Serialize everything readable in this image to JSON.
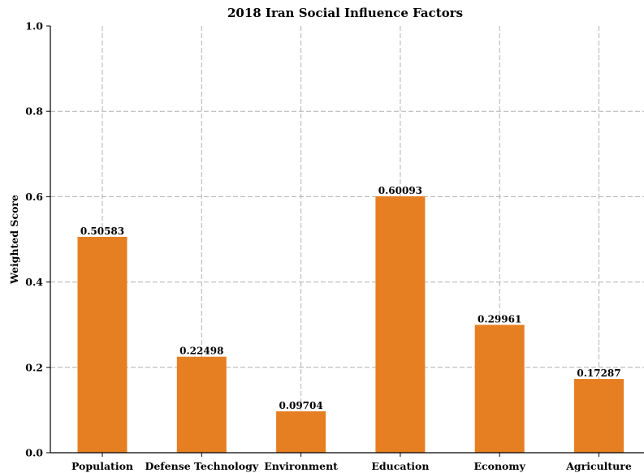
{
  "chart_data": {
    "type": "bar",
    "title": "2018 Iran Social Influence Factors",
    "xlabel": "",
    "ylabel": "Weighted Score",
    "ylim": [
      0,
      1.0
    ],
    "yticks": [
      "0.0",
      "0.2",
      "0.4",
      "0.6",
      "0.8",
      "1.0"
    ],
    "grid": true,
    "categories": [
      "Population",
      "Defense Technology",
      "Environment",
      "Education",
      "Economy",
      "Agriculture"
    ],
    "values": [
      0.50583,
      0.22498,
      0.09704,
      0.60093,
      0.29961,
      0.17287
    ],
    "data_labels": [
      "0.50583",
      "0.22498",
      "0.09704",
      "0.60093",
      "0.29961",
      "0.17287"
    ],
    "bar_color": "#e67e22"
  }
}
